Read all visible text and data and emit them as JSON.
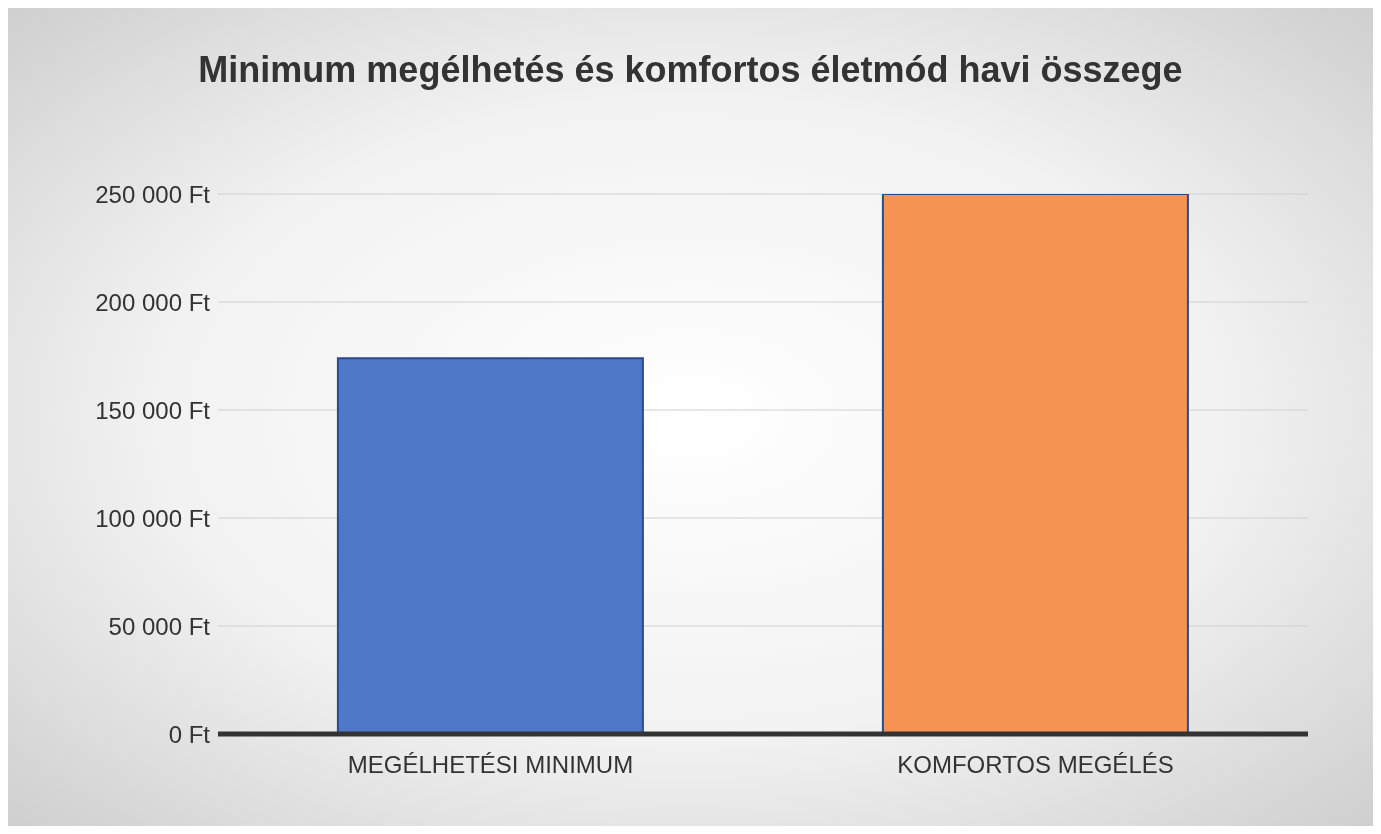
{
  "chart_data": {
    "type": "bar",
    "title": "Minimum megélhetés és komfortos életmód havi összege",
    "categories": [
      "MEGÉLHETÉSI MINIMUM",
      "KOMFORTOS MEGÉLÉS"
    ],
    "values": [
      174000,
      250000
    ],
    "colors": [
      "#4f78c8",
      "#f59353"
    ],
    "ylim": [
      0,
      250000
    ],
    "yticks": [
      {
        "value": 0,
        "label": "0 Ft"
      },
      {
        "value": 50000,
        "label": "50 000 Ft"
      },
      {
        "value": 100000,
        "label": "100 000 Ft"
      },
      {
        "value": 150000,
        "label": "150 000 Ft"
      },
      {
        "value": 200000,
        "label": "200 000 Ft"
      },
      {
        "value": 250000,
        "label": "250 000 Ft"
      }
    ],
    "grid": "y"
  }
}
